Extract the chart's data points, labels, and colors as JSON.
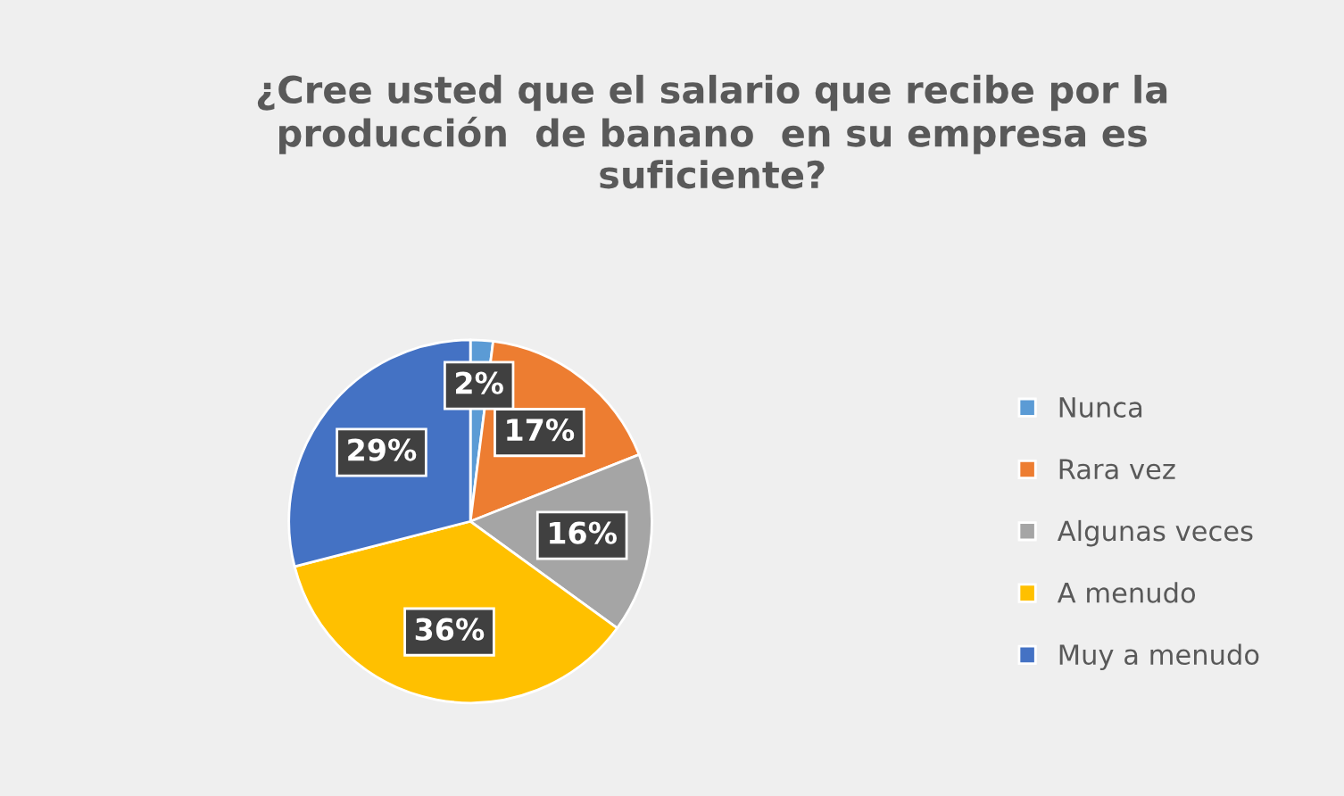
{
  "chart_data": {
    "type": "pie",
    "title": "¿Cree usted que el salario que recibe por la producción  de banano  en su empresa es suficiente?",
    "categories": [
      "Nunca",
      "Rara vez",
      "Algunas veces",
      "A menudo",
      "Muy a menudo"
    ],
    "values": [
      2,
      17,
      16,
      36,
      29
    ],
    "colors": [
      "#5b9bd5",
      "#ed7d31",
      "#a5a5a5",
      "#ffc000",
      "#4472c4"
    ],
    "value_labels": [
      "2%",
      "17%",
      "16%",
      "36%",
      "29%"
    ],
    "legend": "right"
  }
}
